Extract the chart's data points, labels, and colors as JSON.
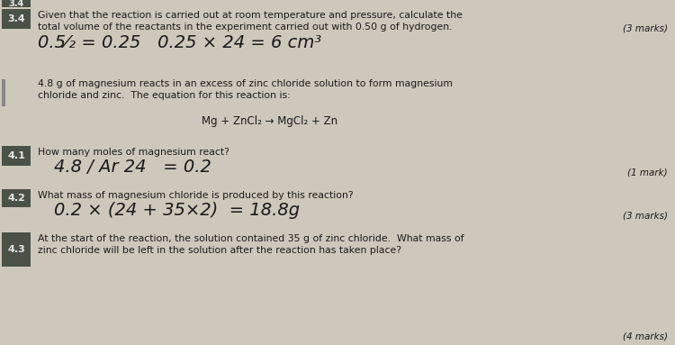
{
  "bg_color": "#cec8bc",
  "text_color": "#1a1a1a",
  "handwritten_color": "#1a1a1a",
  "label_bg": "#4a5248",
  "label_text": "#e8e8e8",
  "sections": {
    "s34": {
      "label": "3.4",
      "q_line1": "Given that the reaction is carried out at room temperature and pressure, calculate the",
      "q_line2": "total volume of the reactants in the experiment carried out with 0.50 g of hydrogen.",
      "marks": "(3 marks)",
      "hw": "0.5⁄₂ = 0.25   0.25 × 24 = 6 cm³"
    },
    "intro": {
      "line1": "4.8 g of magnesium reacts in an excess of zinc chloride solution to form magnesium",
      "line2": "chloride and zinc.  The equation for this reaction is:",
      "equation": "Mg + ZnCl₂ → MgCl₂ + Zn"
    },
    "s41": {
      "label": "4.1",
      "question": "How many moles of magnesium react?",
      "marks": "(1 mark)",
      "hw": "4.8 / Ar 24   = 0.2"
    },
    "s42": {
      "label": "4.2",
      "question": "What mass of magnesium chloride is produced by this reaction?",
      "marks": "(3 marks)",
      "hw": "0.2 × (24 + 35×2)  = 18.8g"
    },
    "s43": {
      "label": "4.3",
      "q_line1": "At the start of the reaction, the solution contained 35 g of zinc chloride.  What mass of",
      "q_line2": "zinc chloride will be left in the solution after the reaction has taken place?",
      "marks": "(4 marks)"
    }
  },
  "top_cut": "3.4"
}
